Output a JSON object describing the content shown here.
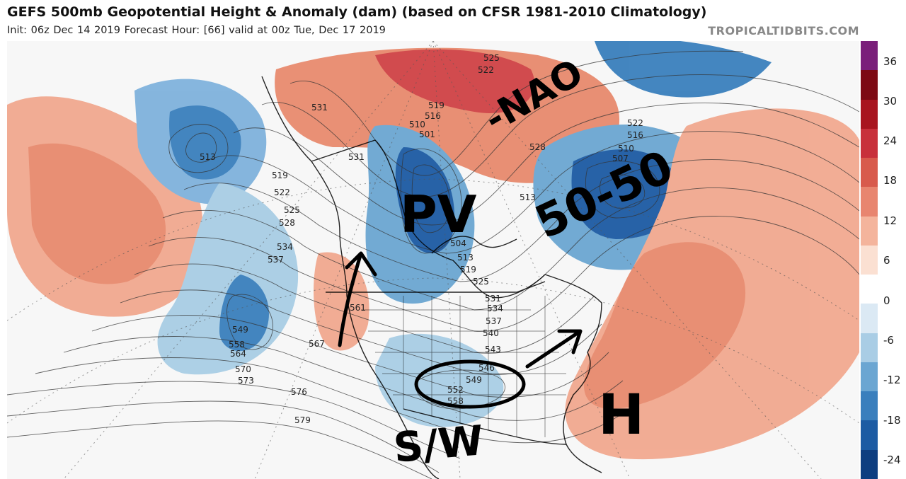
{
  "header": {
    "title": "GEFS 500mb Geopotential Height & Anomaly (dam) (based on CFSR 1981-2010 Climatology)",
    "subtitle": "Init: 06z Dec 14 2019   Forecast Hour: [66]   valid at 00z Tue, Dec 17 2019",
    "site": "TROPICALTIDBITS.COM"
  },
  "colorbar": {
    "ticks": [
      "36",
      "30",
      "24",
      "18",
      "12",
      "6",
      "0",
      "-6",
      "-12",
      "-18",
      "-24"
    ],
    "colors": [
      "#7a1f7a",
      "#7d0a14",
      "#a8151f",
      "#c8303b",
      "#d85a4c",
      "#e8856f",
      "#f4b49c",
      "#fbe0d2",
      "#ffffff",
      "#dbe9f4",
      "#a9cde5",
      "#6ba6d2",
      "#3a7fbd",
      "#1c5ba3",
      "#0e3e80"
    ]
  },
  "map": {
    "contour_labels": [
      "525",
      "522",
      "531",
      "519",
      "516",
      "510",
      "501",
      "531",
      "513",
      "513",
      "519",
      "522",
      "525",
      "528",
      "534",
      "537",
      "549",
      "558",
      "564",
      "570",
      "573",
      "576",
      "579",
      "567",
      "561",
      "504",
      "513",
      "519",
      "525",
      "531",
      "534",
      "537",
      "540",
      "543",
      "546",
      "549",
      "552",
      "558",
      "528",
      "522",
      "516",
      "510",
      "507"
    ],
    "annotations": [
      "-NAO",
      "PV",
      "50-50",
      "H",
      "S/W"
    ],
    "colors": {
      "positive_anomaly": "#e88a6e",
      "negative_anomaly": "#4a8cc8",
      "ink": "#000000"
    }
  }
}
